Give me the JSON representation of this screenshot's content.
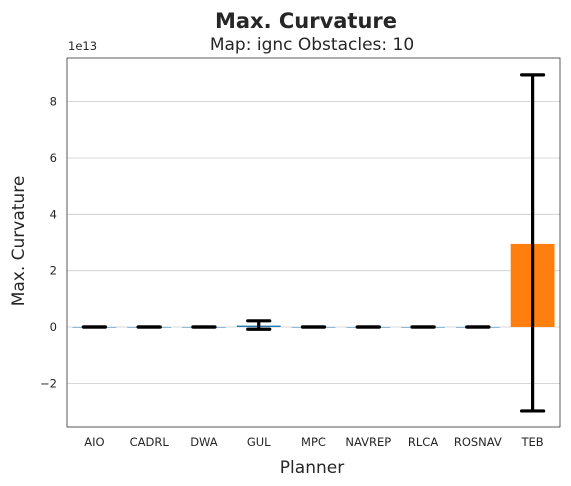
{
  "chart_data": {
    "type": "bar",
    "title": "Max. Curvature",
    "subtitle": "Map: ignc Obstacles: 10",
    "xlabel": "Planner",
    "ylabel": "Max. Curvature",
    "y_offset_label": "1e13",
    "y_scale": 10000000000000.0,
    "ylim": [
      -3.55,
      9.55
    ],
    "yticks": [
      -2,
      0,
      2,
      4,
      6,
      8
    ],
    "ytick_labels": [
      "−2",
      "0",
      "2",
      "4",
      "6",
      "8"
    ],
    "grid": "horizontal",
    "categories": [
      "AIO",
      "CADRL",
      "DWA",
      "GUL",
      "MPC",
      "NAVREP",
      "RLCA",
      "ROSNAV",
      "TEB"
    ],
    "values": [
      0,
      0,
      0,
      0.05,
      0,
      0,
      0,
      0,
      2.95
    ],
    "error_low": [
      0,
      0,
      0,
      -0.08,
      0,
      0,
      0,
      0,
      -2.98
    ],
    "error_high": [
      0,
      0,
      0,
      0.22,
      0,
      0,
      0,
      0,
      8.95
    ],
    "bar_colors": [
      "#1f77b4",
      "#1f77b4",
      "#1f77b4",
      "#1f77b4",
      "#1f77b4",
      "#1f77b4",
      "#1f77b4",
      "#1f77b4",
      "#ff7f0e"
    ],
    "errorbar_color": "#000000"
  }
}
